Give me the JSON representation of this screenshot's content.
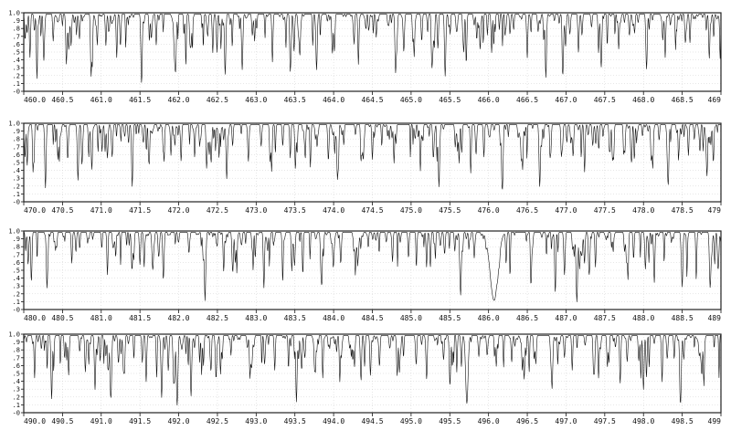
{
  "chart_data": {
    "type": "line",
    "title": "",
    "xlabel": "",
    "ylabel": "",
    "grid": true,
    "y_ticks": [
      "1.0",
      ".9",
      ".8",
      ".7",
      ".6",
      ".5",
      ".4",
      ".3",
      ".2",
      ".1",
      "-0"
    ],
    "ylim": [
      0,
      1.0
    ],
    "panels": [
      {
        "xlim": [
          460.0,
          469.0
        ],
        "x_ticks": [
          "460.0",
          "460.5",
          "461.0",
          "461.5",
          "462.0",
          "462.5",
          "463.0",
          "463.5",
          "464.0",
          "464.5",
          "465.0",
          "465.5",
          "466.0",
          "466.5",
          "467.0",
          "467.5",
          "468.0",
          "468.5",
          "469"
        ],
        "lines": [
          {
            "x": 460.08,
            "depth": 0.55,
            "width": 0.01
          },
          {
            "x": 460.17,
            "depth": 0.8,
            "width": 0.01
          },
          {
            "x": 460.26,
            "depth": 0.45,
            "width": 0.01
          },
          {
            "x": 460.38,
            "depth": 0.35,
            "width": 0.01
          },
          {
            "x": 460.55,
            "depth": 0.6,
            "width": 0.01
          },
          {
            "x": 460.72,
            "depth": 0.3,
            "width": 0.01
          },
          {
            "x": 460.87,
            "depth": 0.75,
            "width": 0.01
          },
          {
            "x": 461.06,
            "depth": 0.4,
            "width": 0.01
          },
          {
            "x": 461.2,
            "depth": 0.55,
            "width": 0.01
          },
          {
            "x": 461.52,
            "depth": 0.82,
            "width": 0.012
          },
          {
            "x": 461.71,
            "depth": 0.4,
            "width": 0.01
          },
          {
            "x": 461.96,
            "depth": 0.7,
            "width": 0.012
          },
          {
            "x": 462.16,
            "depth": 0.35,
            "width": 0.01
          },
          {
            "x": 462.44,
            "depth": 0.5,
            "width": 0.01
          },
          {
            "x": 462.6,
            "depth": 0.78,
            "width": 0.012
          },
          {
            "x": 462.82,
            "depth": 0.72,
            "width": 0.012
          },
          {
            "x": 462.98,
            "depth": 0.35,
            "width": 0.01
          },
          {
            "x": 463.21,
            "depth": 0.62,
            "width": 0.01
          },
          {
            "x": 463.44,
            "depth": 0.55,
            "width": 0.01
          },
          {
            "x": 463.78,
            "depth": 0.72,
            "width": 0.012
          },
          {
            "x": 464.01,
            "depth": 0.4,
            "width": 0.01
          },
          {
            "x": 464.32,
            "depth": 0.65,
            "width": 0.01
          },
          {
            "x": 464.55,
            "depth": 0.3,
            "width": 0.01
          },
          {
            "x": 464.8,
            "depth": 0.75,
            "width": 0.012
          },
          {
            "x": 465.04,
            "depth": 0.55,
            "width": 0.01
          },
          {
            "x": 465.27,
            "depth": 0.6,
            "width": 0.01
          },
          {
            "x": 465.44,
            "depth": 0.8,
            "width": 0.012
          },
          {
            "x": 465.68,
            "depth": 0.45,
            "width": 0.01
          },
          {
            "x": 466.04,
            "depth": 0.5,
            "width": 0.01
          },
          {
            "x": 466.5,
            "depth": 0.55,
            "width": 0.01
          },
          {
            "x": 466.74,
            "depth": 0.82,
            "width": 0.012
          },
          {
            "x": 466.96,
            "depth": 0.75,
            "width": 0.012
          },
          {
            "x": 467.16,
            "depth": 0.45,
            "width": 0.01
          },
          {
            "x": 467.42,
            "depth": 0.5,
            "width": 0.01
          },
          {
            "x": 467.68,
            "depth": 0.4,
            "width": 0.01
          },
          {
            "x": 468.04,
            "depth": 0.7,
            "width": 0.012
          },
          {
            "x": 468.28,
            "depth": 0.55,
            "width": 0.01
          },
          {
            "x": 468.6,
            "depth": 0.35,
            "width": 0.01
          },
          {
            "x": 468.85,
            "depth": 0.45,
            "width": 0.01
          }
        ]
      },
      {
        "xlim": [
          470.0,
          479.0
        ],
        "x_ticks": [
          "470.0",
          "470.5",
          "471.0",
          "471.5",
          "472.0",
          "472.5",
          "473.0",
          "473.5",
          "474.0",
          "474.5",
          "475.0",
          "475.5",
          "476.0",
          "476.5",
          "477.0",
          "477.5",
          "478.0",
          "478.5",
          "479"
        ],
        "lines": [
          {
            "x": 470.12,
            "depth": 0.6,
            "width": 0.01
          },
          {
            "x": 470.28,
            "depth": 0.82,
            "width": 0.012
          },
          {
            "x": 470.44,
            "depth": 0.45,
            "width": 0.01
          },
          {
            "x": 470.7,
            "depth": 0.72,
            "width": 0.012
          },
          {
            "x": 470.88,
            "depth": 0.55,
            "width": 0.01
          },
          {
            "x": 471.05,
            "depth": 0.35,
            "width": 0.01
          },
          {
            "x": 471.4,
            "depth": 0.8,
            "width": 0.012
          },
          {
            "x": 471.62,
            "depth": 0.5,
            "width": 0.01
          },
          {
            "x": 471.9,
            "depth": 0.4,
            "width": 0.01
          },
          {
            "x": 472.36,
            "depth": 0.55,
            "width": 0.01
          },
          {
            "x": 472.62,
            "depth": 0.7,
            "width": 0.012
          },
          {
            "x": 472.9,
            "depth": 0.45,
            "width": 0.01
          },
          {
            "x": 473.2,
            "depth": 0.6,
            "width": 0.01
          },
          {
            "x": 473.44,
            "depth": 0.4,
            "width": 0.01
          },
          {
            "x": 473.7,
            "depth": 0.55,
            "width": 0.01
          },
          {
            "x": 474.05,
            "depth": 0.68,
            "width": 0.012
          },
          {
            "x": 474.5,
            "depth": 0.45,
            "width": 0.01
          },
          {
            "x": 474.78,
            "depth": 0.5,
            "width": 0.01
          },
          {
            "x": 475.12,
            "depth": 0.6,
            "width": 0.01
          },
          {
            "x": 475.36,
            "depth": 0.8,
            "width": 0.012
          },
          {
            "x": 475.62,
            "depth": 0.5,
            "width": 0.01
          },
          {
            "x": 475.94,
            "depth": 0.42,
            "width": 0.01
          },
          {
            "x": 476.18,
            "depth": 0.7,
            "width": 0.012
          },
          {
            "x": 476.44,
            "depth": 0.55,
            "width": 0.01
          },
          {
            "x": 476.66,
            "depth": 0.78,
            "width": 0.012
          },
          {
            "x": 476.94,
            "depth": 0.4,
            "width": 0.01
          },
          {
            "x": 477.24,
            "depth": 0.6,
            "width": 0.01
          },
          {
            "x": 477.6,
            "depth": 0.45,
            "width": 0.01
          },
          {
            "x": 477.84,
            "depth": 0.3,
            "width": 0.01
          },
          {
            "x": 478.12,
            "depth": 0.55,
            "width": 0.01
          },
          {
            "x": 478.32,
            "depth": 0.72,
            "width": 0.012
          },
          {
            "x": 478.58,
            "depth": 0.4,
            "width": 0.01
          },
          {
            "x": 478.82,
            "depth": 0.65,
            "width": 0.012
          }
        ]
      },
      {
        "xlim": [
          480.0,
          489.0
        ],
        "x_ticks": [
          "480.0",
          "480.5",
          "481.0",
          "481.5",
          "482.0",
          "482.5",
          "483.0",
          "483.5",
          "484.0",
          "484.5",
          "485.0",
          "485.5",
          "486.0",
          "486.5",
          "487.0",
          "487.5",
          "488.0",
          "488.5",
          "489"
        ],
        "lines": [
          {
            "x": 480.1,
            "depth": 0.45,
            "width": 0.01
          },
          {
            "x": 480.3,
            "depth": 0.72,
            "width": 0.012
          },
          {
            "x": 480.62,
            "depth": 0.4,
            "width": 0.01
          },
          {
            "x": 481.08,
            "depth": 0.55,
            "width": 0.01
          },
          {
            "x": 481.42,
            "depth": 0.35,
            "width": 0.01
          },
          {
            "x": 481.8,
            "depth": 0.5,
            "width": 0.01
          },
          {
            "x": 482.34,
            "depth": 0.88,
            "width": 0.012
          },
          {
            "x": 482.7,
            "depth": 0.45,
            "width": 0.01
          },
          {
            "x": 483.1,
            "depth": 0.6,
            "width": 0.01
          },
          {
            "x": 483.46,
            "depth": 0.5,
            "width": 0.01
          },
          {
            "x": 483.84,
            "depth": 0.4,
            "width": 0.01
          },
          {
            "x": 484.28,
            "depth": 0.55,
            "width": 0.01
          },
          {
            "x": 484.76,
            "depth": 0.35,
            "width": 0.01
          },
          {
            "x": 485.2,
            "depth": 0.45,
            "width": 0.01
          },
          {
            "x": 485.64,
            "depth": 0.8,
            "width": 0.012
          },
          {
            "x": 486.07,
            "depth": 0.88,
            "width": 0.07
          },
          {
            "x": 486.55,
            "depth": 0.4,
            "width": 0.01
          },
          {
            "x": 486.98,
            "depth": 0.55,
            "width": 0.012
          },
          {
            "x": 487.14,
            "depth": 0.9,
            "width": 0.014
          },
          {
            "x": 487.38,
            "depth": 0.45,
            "width": 0.01
          },
          {
            "x": 487.8,
            "depth": 0.6,
            "width": 0.01
          },
          {
            "x": 488.14,
            "depth": 0.55,
            "width": 0.01
          },
          {
            "x": 488.5,
            "depth": 0.7,
            "width": 0.012
          },
          {
            "x": 488.86,
            "depth": 0.6,
            "width": 0.01
          }
        ]
      },
      {
        "xlim": [
          490.0,
          499.0
        ],
        "x_ticks": [
          "490.0",
          "490.5",
          "491.0",
          "491.5",
          "492.0",
          "492.5",
          "493.0",
          "493.5",
          "494.0",
          "494.5",
          "495.0",
          "495.5",
          "496.0",
          "496.5",
          "497.0",
          "497.5",
          "498.0",
          "498.5",
          "499"
        ],
        "lines": [
          {
            "x": 490.14,
            "depth": 0.55,
            "width": 0.01
          },
          {
            "x": 490.36,
            "depth": 0.82,
            "width": 0.012
          },
          {
            "x": 490.58,
            "depth": 0.5,
            "width": 0.01
          },
          {
            "x": 490.92,
            "depth": 0.7,
            "width": 0.012
          },
          {
            "x": 491.12,
            "depth": 0.6,
            "width": 0.01
          },
          {
            "x": 491.3,
            "depth": 0.45,
            "width": 0.01
          },
          {
            "x": 491.58,
            "depth": 0.55,
            "width": 0.01
          },
          {
            "x": 491.78,
            "depth": 0.8,
            "width": 0.012
          },
          {
            "x": 491.98,
            "depth": 0.88,
            "width": 0.014
          },
          {
            "x": 492.16,
            "depth": 0.6,
            "width": 0.01
          },
          {
            "x": 492.54,
            "depth": 0.5,
            "width": 0.01
          },
          {
            "x": 492.92,
            "depth": 0.55,
            "width": 0.01
          },
          {
            "x": 493.24,
            "depth": 0.45,
            "width": 0.01
          },
          {
            "x": 493.52,
            "depth": 0.86,
            "width": 0.012
          },
          {
            "x": 493.86,
            "depth": 0.55,
            "width": 0.01
          },
          {
            "x": 494.08,
            "depth": 0.6,
            "width": 0.01
          },
          {
            "x": 494.4,
            "depth": 0.4,
            "width": 0.01
          },
          {
            "x": 494.82,
            "depth": 0.35,
            "width": 0.01
          },
          {
            "x": 495.2,
            "depth": 0.45,
            "width": 0.01
          },
          {
            "x": 495.5,
            "depth": 0.5,
            "width": 0.01
          },
          {
            "x": 495.72,
            "depth": 0.88,
            "width": 0.022
          },
          {
            "x": 496.1,
            "depth": 0.4,
            "width": 0.01
          },
          {
            "x": 496.46,
            "depth": 0.5,
            "width": 0.01
          },
          {
            "x": 496.82,
            "depth": 0.6,
            "width": 0.01
          },
          {
            "x": 497.08,
            "depth": 0.45,
            "width": 0.01
          },
          {
            "x": 497.42,
            "depth": 0.55,
            "width": 0.01
          },
          {
            "x": 497.7,
            "depth": 0.5,
            "width": 0.01
          },
          {
            "x": 498.0,
            "depth": 0.7,
            "width": 0.012
          },
          {
            "x": 498.24,
            "depth": 0.6,
            "width": 0.01
          },
          {
            "x": 498.48,
            "depth": 0.8,
            "width": 0.012
          },
          {
            "x": 498.78,
            "depth": 0.65,
            "width": 0.01
          }
        ]
      }
    ]
  }
}
